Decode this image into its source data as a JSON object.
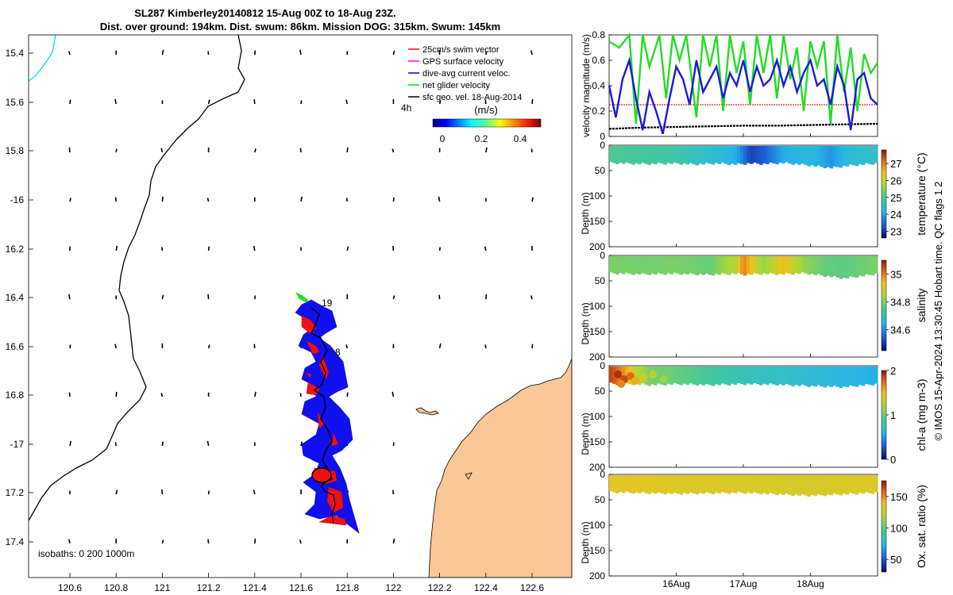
{
  "title": {
    "line1": "SL287 Kimberley20140812 15-Aug 00Z to 18-Aug 23Z.",
    "line2": "Dist. over ground: 194km. Dist. swum: 86km. Mission DOG: 315km. Swum: 145km"
  },
  "map": {
    "lat_ticks": [
      "15.4",
      "15.6",
      "15.8",
      "-16",
      "16.2",
      "16.4",
      "16.6",
      "16.8",
      "-17",
      "17.2",
      "17.4"
    ],
    "lon_ticks": [
      "120.6",
      "120.8",
      "121",
      "121.2",
      "121.4",
      "121.6",
      "121.8",
      "122",
      "122.2",
      "122.4",
      "122.6"
    ],
    "isobaths_label": "isobaths: 0   200  1000m",
    "legend": [
      {
        "label": "25cm/s swim vector",
        "color": "#ff0000"
      },
      {
        "label": "GPS surface velocity",
        "color": "#ff00ff"
      },
      {
        "label": "dive-avg current veloc.",
        "color": "#0000ff"
      },
      {
        "label": "net glider velocity",
        "color": "#00dd00"
      },
      {
        "label": "sfc geo. vel. 18-Aug-2014",
        "color": "#000000"
      }
    ],
    "annot_4h": "4h",
    "colorbar_unit": "(m/s)",
    "colorbar_ticks": [
      "0",
      "0.2",
      "0.4"
    ],
    "track_label_19": "19",
    "track_label_8": "8",
    "land_color": "#f9c896",
    "track_color": "#0000ff",
    "swim_color": "#ff0000"
  },
  "chart_data": [
    {
      "type": "line",
      "title": "",
      "ylabel": "velocity magnitude (m/s)",
      "ylim": [
        0,
        0.8
      ],
      "yticks": [
        "0",
        "0.2",
        "0.4",
        "0.6",
        "0.8"
      ],
      "xlim_days": [
        15.0,
        19.0
      ],
      "series": [
        {
          "name": "net glider velocity",
          "color": "#22dd22",
          "x": [
            15.0,
            15.15,
            15.3,
            15.4,
            15.5,
            15.6,
            15.75,
            15.85,
            15.95,
            16.05,
            16.15,
            16.3,
            16.4,
            16.5,
            16.6,
            16.7,
            16.8,
            16.9,
            17.0,
            17.1,
            17.2,
            17.3,
            17.4,
            17.5,
            17.6,
            17.7,
            17.8,
            17.9,
            18.0,
            18.1,
            18.2,
            18.3,
            18.4,
            18.5,
            18.6,
            18.7,
            18.8,
            18.9,
            19.0
          ],
          "y": [
            0.75,
            0.7,
            0.8,
            0.1,
            0.8,
            0.55,
            0.8,
            0.3,
            0.8,
            0.6,
            0.8,
            0.15,
            0.8,
            0.55,
            0.8,
            0.2,
            0.8,
            0.5,
            0.75,
            0.25,
            0.8,
            0.5,
            0.8,
            0.3,
            0.8,
            0.45,
            0.7,
            0.2,
            0.75,
            0.55,
            0.75,
            0.1,
            0.8,
            0.35,
            0.7,
            0.2,
            0.65,
            0.5,
            0.58
          ]
        },
        {
          "name": "dive-avg current veloc.",
          "color": "#1a1adc",
          "x": [
            15.0,
            15.1,
            15.2,
            15.3,
            15.4,
            15.5,
            15.6,
            15.7,
            15.8,
            15.9,
            16.0,
            16.1,
            16.2,
            16.3,
            16.4,
            16.5,
            16.6,
            16.7,
            16.8,
            16.9,
            17.0,
            17.1,
            17.2,
            17.3,
            17.4,
            17.5,
            17.6,
            17.7,
            17.8,
            17.9,
            18.0,
            18.1,
            18.2,
            18.3,
            18.4,
            18.5,
            18.6,
            18.7,
            18.8,
            18.9,
            19.0
          ],
          "y": [
            0.4,
            0.15,
            0.45,
            0.6,
            0.3,
            0.05,
            0.35,
            0.2,
            0.02,
            0.3,
            0.55,
            0.45,
            0.25,
            0.6,
            0.35,
            0.45,
            0.55,
            0.3,
            0.5,
            0.4,
            0.6,
            0.35,
            0.55,
            0.4,
            0.45,
            0.6,
            0.4,
            0.55,
            0.35,
            0.5,
            0.6,
            0.4,
            0.45,
            0.25,
            0.55,
            0.4,
            0.05,
            0.45,
            0.5,
            0.3,
            0.25
          ]
        },
        {
          "name": "25cm/s swim vector",
          "color": "#ee2222",
          "x": [
            15.0,
            19.0
          ],
          "y": [
            0.25,
            0.25
          ]
        },
        {
          "name": "sfc geo. vel.",
          "color": "#000000",
          "x": [
            15.0,
            15.5,
            16.0,
            16.5,
            17.0,
            17.5,
            18.0,
            18.5,
            19.0
          ],
          "y": [
            0.06,
            0.07,
            0.075,
            0.08,
            0.085,
            0.085,
            0.09,
            0.095,
            0.1
          ]
        }
      ]
    },
    {
      "type": "heatmap",
      "variable": "temperature",
      "cbar_label": "temperature (°C)",
      "ylabel": "Depth (m)",
      "ylim": [
        200,
        0
      ],
      "yticks": [
        "0",
        "50",
        "100",
        "150",
        "200"
      ],
      "cbar_range": [
        22.6,
        27.8
      ],
      "cbar_ticks": [
        "23",
        "24",
        "25",
        "26",
        "27"
      ],
      "colorscale": [
        "#0b0b6e",
        "#1e5fd8",
        "#27b6e8",
        "#45c89a",
        "#a6d83a",
        "#f0c21e",
        "#e0631c",
        "#8a1a0a"
      ],
      "sample_days": [
        15.0,
        15.5,
        16.0,
        16.3,
        16.6,
        16.9,
        17.1,
        17.3,
        17.6,
        18.0,
        18.3,
        18.6,
        19.0
      ],
      "sample_values": [
        24.9,
        24.8,
        24.7,
        24.5,
        24.3,
        24.0,
        23.1,
        23.3,
        24.0,
        24.2,
        23.8,
        24.3,
        24.4
      ],
      "max_depth": [
        35,
        37,
        36,
        38,
        36,
        38,
        36,
        37,
        35,
        40,
        45,
        40,
        36
      ]
    },
    {
      "type": "heatmap",
      "variable": "salinity",
      "cbar_label": "salinity",
      "ylabel": "Depth (m)",
      "ylim": [
        200,
        0
      ],
      "yticks": [
        "0",
        "50",
        "100",
        "150",
        "200"
      ],
      "cbar_range": [
        34.45,
        35.1
      ],
      "cbar_ticks": [
        "34.6",
        "34.8",
        "35"
      ],
      "sample_days": [
        15.0,
        15.5,
        16.0,
        16.5,
        16.9,
        17.0,
        17.3,
        17.6,
        17.9,
        18.2,
        18.5,
        18.8,
        19.0
      ],
      "sample_values": [
        34.78,
        34.77,
        34.78,
        34.76,
        34.85,
        34.98,
        34.8,
        34.92,
        34.8,
        34.76,
        34.75,
        34.77,
        34.78
      ],
      "max_depth": [
        35,
        37,
        36,
        38,
        36,
        38,
        36,
        37,
        35,
        40,
        45,
        40,
        36
      ]
    },
    {
      "type": "heatmap",
      "variable": "chl-a",
      "cbar_label": "chl-a (mg m-3)",
      "ylabel": "Depth (m)",
      "ylim": [
        200,
        0
      ],
      "yticks": [
        "0",
        "50",
        "100",
        "150",
        "200"
      ],
      "cbar_range": [
        0,
        2
      ],
      "cbar_ticks": [
        "0",
        "1",
        "2"
      ],
      "sample_days": [
        15.0,
        15.2,
        15.4,
        15.6,
        16.0,
        16.5,
        17.0,
        17.5,
        18.0,
        18.5,
        19.0
      ],
      "sample_values": [
        1.85,
        1.6,
        1.25,
        1.0,
        0.95,
        0.85,
        0.75,
        0.7,
        0.65,
        0.6,
        0.55
      ],
      "max_depth": [
        35,
        37,
        36,
        38,
        36,
        38,
        36,
        37,
        40,
        42,
        36
      ]
    },
    {
      "type": "heatmap",
      "variable": "oxygen saturation",
      "cbar_label": "Ox. sat. ratio (%)",
      "ylabel": "Depth (m)",
      "ylim": [
        200,
        0
      ],
      "yticks": [
        "0",
        "50",
        "100",
        "150",
        "200"
      ],
      "cbar_range": [
        30,
        175
      ],
      "cbar_ticks": [
        "50",
        "100",
        "150"
      ],
      "sample_days": [
        15.0,
        16.0,
        17.0,
        18.0,
        19.0
      ],
      "sample_values": [
        130,
        128,
        127,
        126,
        128
      ],
      "max_depth": [
        35,
        38,
        36,
        42,
        36
      ]
    }
  ],
  "x_date_ticks": [
    {
      "day": 16.0,
      "label": "16Aug"
    },
    {
      "day": 17.0,
      "label": "17Aug"
    },
    {
      "day": 18.0,
      "label": "18Aug"
    }
  ],
  "side_note": "© IMOS 15-Apr-2024 13:30:45 Hobart time. QC flags 1  2"
}
